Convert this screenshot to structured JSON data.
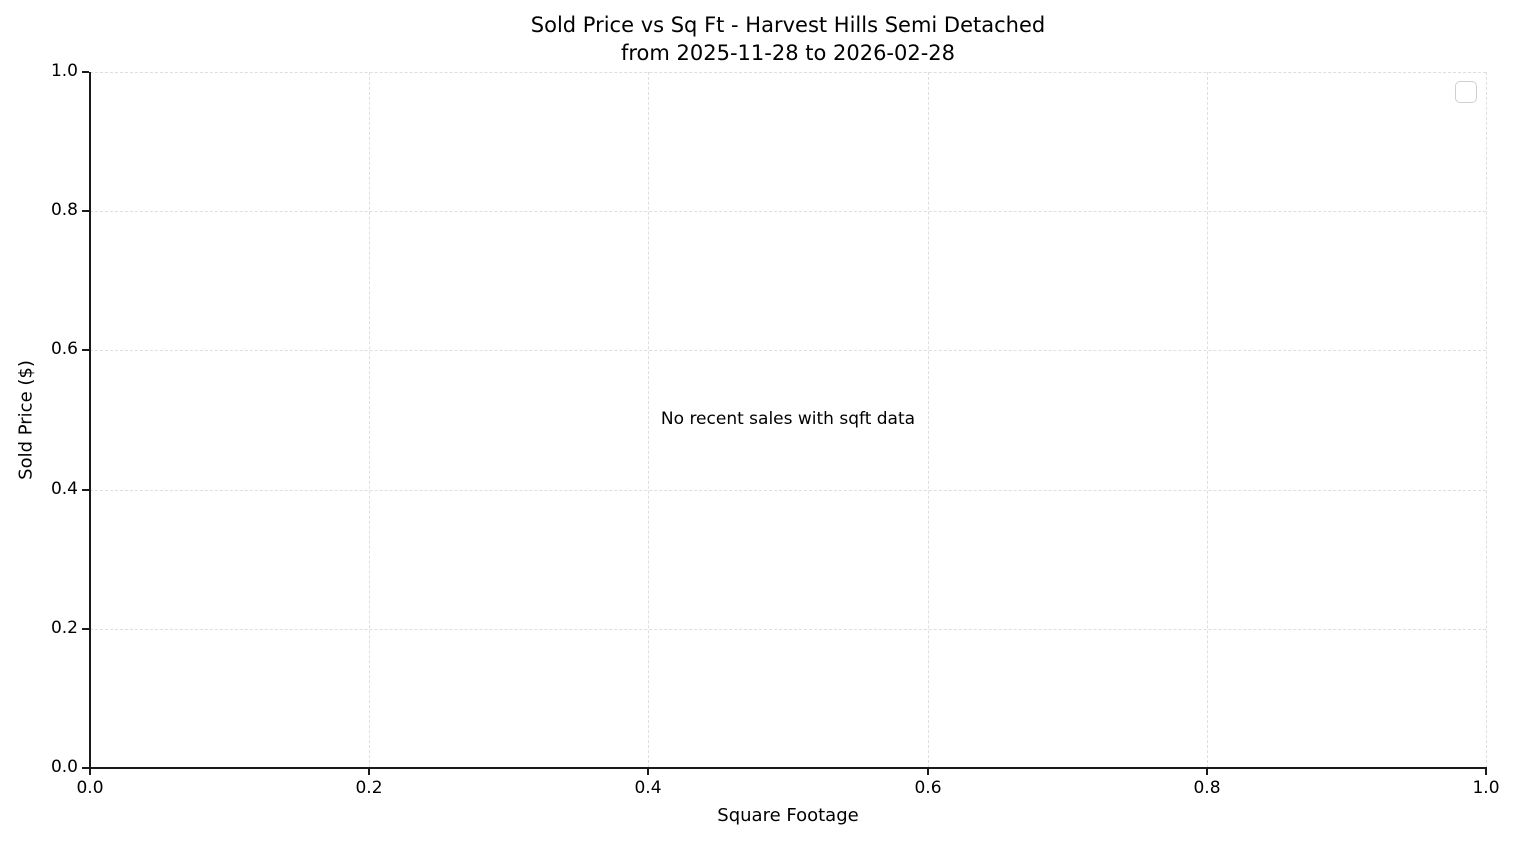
{
  "chart_data": {
    "type": "scatter",
    "title": "Sold Price vs Sq Ft - Harvest Hills Semi Detached",
    "subtitle": "from 2025-11-28 to 2026-02-28",
    "xlabel": "Square Footage",
    "ylabel": "Sold Price ($)",
    "xlim": [
      0.0,
      1.0
    ],
    "ylim": [
      0.0,
      1.0
    ],
    "xticks": [
      0.0,
      0.2,
      0.4,
      0.6,
      0.8,
      1.0
    ],
    "yticks": [
      0.0,
      0.2,
      0.4,
      0.6,
      0.8,
      1.0
    ],
    "xtick_labels": [
      "0.0",
      "0.2",
      "0.4",
      "0.6",
      "0.8",
      "1.0"
    ],
    "ytick_labels": [
      "0.0",
      "0.2",
      "0.4",
      "0.6",
      "0.8",
      "1.0"
    ],
    "series": [],
    "points": [],
    "annotation": "No recent sales with sqft data",
    "grid": {
      "visible": true,
      "style": "dashed",
      "color": "#dedede"
    },
    "legend": {
      "visible": true,
      "entries": [],
      "position": "upper right"
    },
    "colors": {
      "spine": "#1a1a1a",
      "text": "#000000",
      "background": "#ffffff"
    }
  }
}
